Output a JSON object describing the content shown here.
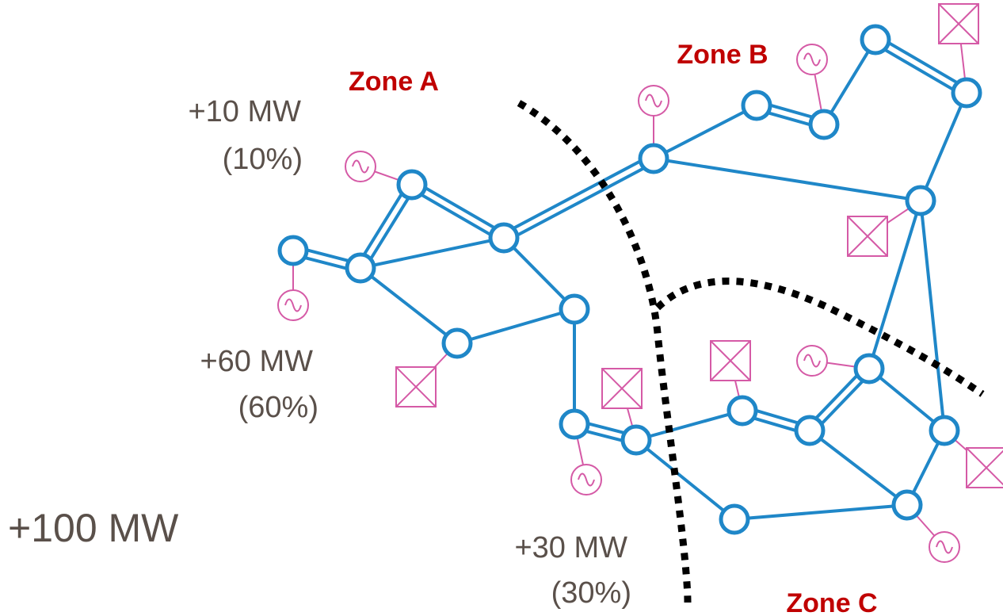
{
  "zones": [
    "Zone A",
    "Zone B",
    "Zone C"
  ],
  "flows": [
    {
      "power": "+10 MW",
      "share": "(10%)"
    },
    {
      "power": "+60 MW",
      "share": "(60%)"
    },
    {
      "power": "+30 MW",
      "share": "(30%)"
    }
  ],
  "total": "+100 MW"
}
